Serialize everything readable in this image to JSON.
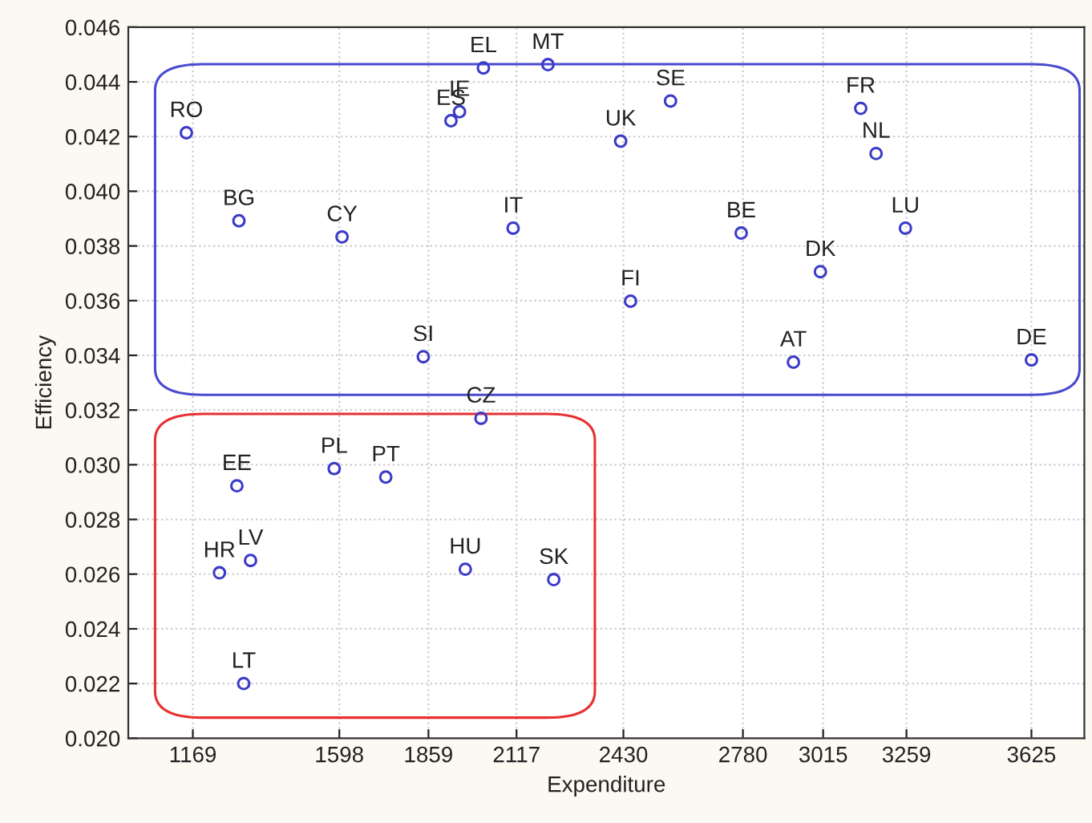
{
  "chart_data": {
    "type": "scatter",
    "xlabel": "Expenditure",
    "ylabel": "Efficiency",
    "x": [
      1150,
      1304,
      1606,
      1844,
      1925,
      1950,
      2020,
      2107,
      2209,
      2568,
      2422,
      3125,
      3170,
      2775,
      3256,
      3007,
      2451,
      2928,
      3625,
      2013,
      1298,
      1583,
      1734,
      1247,
      1338,
      1967,
      2226,
      1318
    ],
    "series": [
      {
        "color": "#3a3ac8",
        "values": [
          0.04214,
          0.03892,
          0.03833,
          0.03395,
          0.04258,
          0.04291,
          0.04451,
          0.03865,
          0.04463,
          0.0433,
          0.04183,
          0.04303,
          0.04138,
          0.03847,
          0.03865,
          0.03706,
          0.03598,
          0.03375,
          0.03383,
          0.0317,
          0.02923,
          0.02986,
          0.02955,
          0.02605,
          0.0265,
          0.02618,
          0.0258,
          0.022
        ]
      }
    ],
    "annotations": [
      {
        "text": "RO",
        "x": 1150,
        "y": 0.04214
      },
      {
        "text": "BG",
        "x": 1304,
        "y": 0.03892
      },
      {
        "text": "CY",
        "x": 1606,
        "y": 0.03833
      },
      {
        "text": "SI",
        "x": 1844,
        "y": 0.03395
      },
      {
        "text": "ES",
        "x": 1925,
        "y": 0.04258
      },
      {
        "text": "IE",
        "x": 1950,
        "y": 0.04291
      },
      {
        "text": "EL",
        "x": 2020,
        "y": 0.04451
      },
      {
        "text": "IT",
        "x": 2107,
        "y": 0.03865
      },
      {
        "text": "MT",
        "x": 2209,
        "y": 0.04463
      },
      {
        "text": "SE",
        "x": 2568,
        "y": 0.0433
      },
      {
        "text": "UK",
        "x": 2422,
        "y": 0.04183
      },
      {
        "text": "FR",
        "x": 3125,
        "y": 0.04303
      },
      {
        "text": "NL",
        "x": 3170,
        "y": 0.04138
      },
      {
        "text": "BE",
        "x": 2775,
        "y": 0.03847
      },
      {
        "text": "LU",
        "x": 3256,
        "y": 0.03865
      },
      {
        "text": "DK",
        "x": 3007,
        "y": 0.03706
      },
      {
        "text": "FI",
        "x": 2451,
        "y": 0.03598
      },
      {
        "text": "AT",
        "x": 2928,
        "y": 0.03375
      },
      {
        "text": "DE",
        "x": 3625,
        "y": 0.03383
      },
      {
        "text": "CZ",
        "x": 2013,
        "y": 0.0317
      },
      {
        "text": "EE",
        "x": 1298,
        "y": 0.02923
      },
      {
        "text": "PL",
        "x": 1583,
        "y": 0.02986
      },
      {
        "text": "PT",
        "x": 1734,
        "y": 0.02955
      },
      {
        "text": "HR",
        "x": 1247,
        "y": 0.02605
      },
      {
        "text": "LV",
        "x": 1338,
        "y": 0.0265
      },
      {
        "text": "HU",
        "x": 1967,
        "y": 0.02618
      },
      {
        "text": "SK",
        "x": 2226,
        "y": 0.0258
      },
      {
        "text": "LT",
        "x": 1318,
        "y": 0.022
      }
    ],
    "xlim": [
      980,
      3780
    ],
    "xticks": [
      1169,
      1598,
      1859,
      2117,
      2430,
      2780,
      3015,
      3259,
      3625
    ],
    "ylim": [
      0.02,
      0.046
    ],
    "yticks": [
      {
        "value": 0.02,
        "label": "0.020"
      },
      {
        "value": 0.022,
        "label": "0.022"
      },
      {
        "value": 0.024,
        "label": "0.024"
      },
      {
        "value": 0.026,
        "label": "0.026"
      },
      {
        "value": 0.028,
        "label": "0.028"
      },
      {
        "value": 0.03,
        "label": "0.030"
      },
      {
        "value": 0.032,
        "label": "0.032"
      },
      {
        "value": 0.034,
        "label": "0.034"
      },
      {
        "value": 0.036,
        "label": "0.036"
      },
      {
        "value": 0.038,
        "label": "0.038"
      },
      {
        "value": 0.04,
        "label": "0.040"
      },
      {
        "value": 0.042,
        "label": "0.042"
      },
      {
        "value": 0.044,
        "label": "0.044"
      },
      {
        "value": 0.046,
        "label": "0.046"
      }
    ],
    "grid": true,
    "marker": "circle"
  }
}
